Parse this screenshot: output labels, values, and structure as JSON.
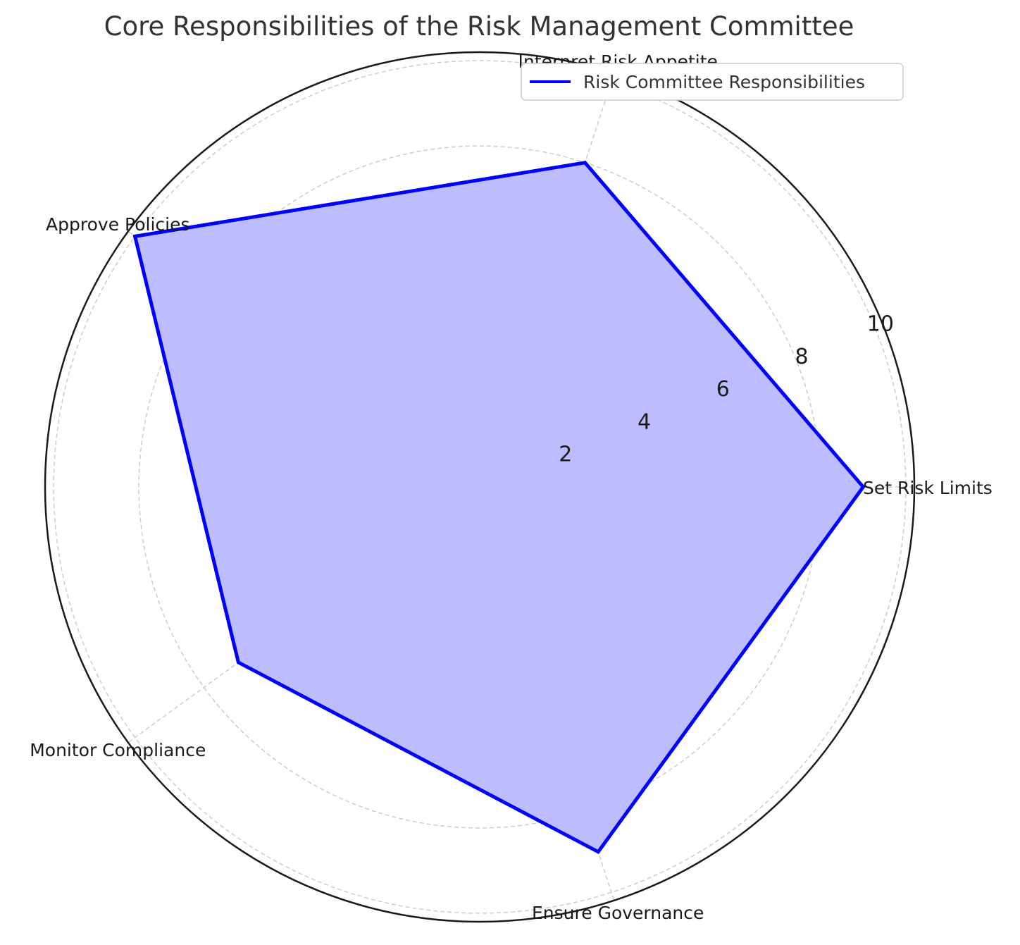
{
  "chart_data": {
    "type": "radar",
    "title": "Core Responsibilities of the Risk Management Committee",
    "categories": [
      "Set Risk Limits",
      "Interpret Risk Appetite",
      "Approve Policies",
      "Monitor Compliance",
      "Ensure Governance"
    ],
    "series": [
      {
        "name": "Risk Committee Responsibilities",
        "values": [
          9,
          8,
          10,
          7,
          9
        ],
        "line_color": "#0000ff",
        "fill_color": "#bdbdfd"
      }
    ],
    "r_ticks": [
      2,
      4,
      6,
      8,
      10
    ],
    "r_tick_labels": [
      "2",
      "4",
      "6",
      "8",
      "10"
    ],
    "rlim": [
      0,
      10.2
    ],
    "grid": true,
    "legend_position": "top-right"
  },
  "colors": {
    "grid": "#cccccc",
    "outer_circle": "#1a1a1a"
  }
}
